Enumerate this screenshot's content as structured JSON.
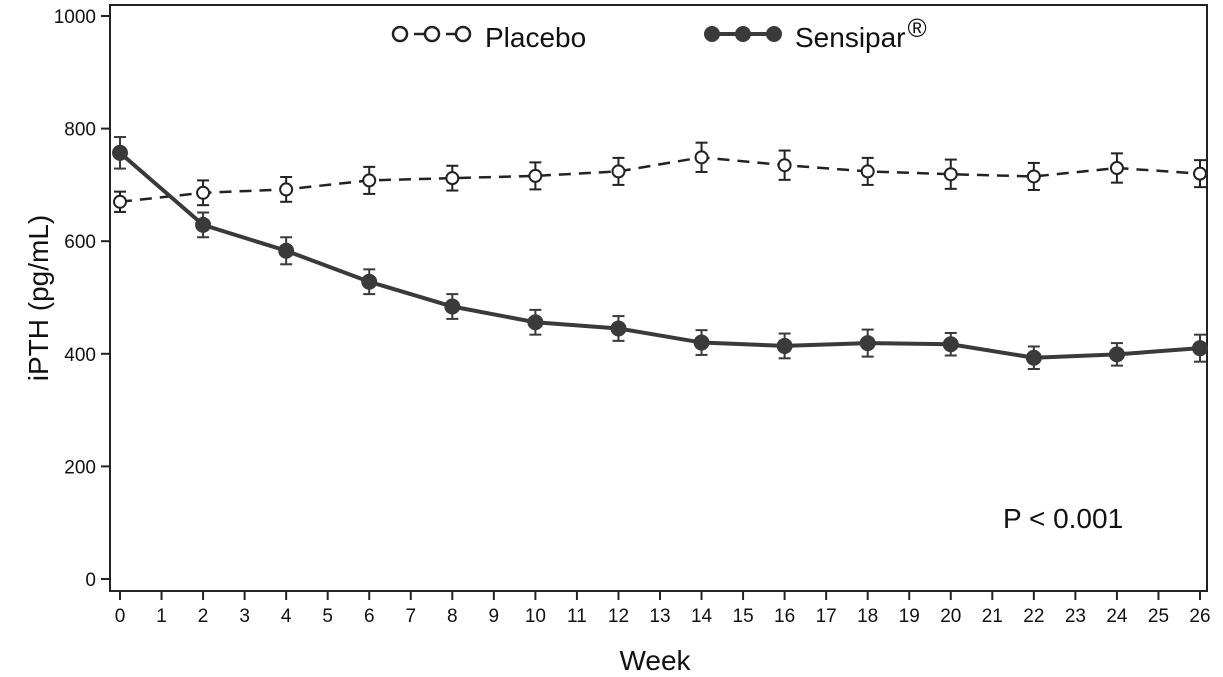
{
  "chart_data": {
    "type": "line",
    "xlabel": "Week",
    "ylabel": "iPTH (pg/mL)",
    "xlim": [
      0,
      26
    ],
    "ylim": [
      0,
      1000
    ],
    "x_ticks": [
      "0",
      "1",
      "2",
      "3",
      "4",
      "5",
      "6",
      "7",
      "8",
      "9",
      "10",
      "11",
      "12",
      "13",
      "14",
      "15",
      "16",
      "17",
      "18",
      "19",
      "20",
      "21",
      "22",
      "23",
      "24",
      "25",
      "26"
    ],
    "y_ticks": [
      "0",
      "200",
      "400",
      "600",
      "800",
      "1000"
    ],
    "x": [
      0,
      2,
      4,
      6,
      8,
      10,
      12,
      14,
      16,
      18,
      20,
      22,
      24,
      26
    ],
    "series": [
      {
        "name": "Placebo",
        "style": "dashed-open-circle",
        "color": "#222222",
        "values": [
          670,
          686,
          692,
          708,
          712,
          716,
          724,
          749,
          735,
          724,
          719,
          715,
          730,
          720
        ],
        "error": [
          18,
          22,
          22,
          24,
          22,
          24,
          24,
          26,
          26,
          24,
          26,
          24,
          26,
          24
        ]
      },
      {
        "name": "Sensipar",
        "name_suffix": "®",
        "style": "solid-filled-circle",
        "color": "#3a3a3a",
        "values": [
          757,
          629,
          583,
          528,
          484,
          456,
          445,
          420,
          414,
          419,
          417,
          393,
          399,
          410
        ],
        "error": [
          28,
          22,
          24,
          22,
          22,
          22,
          22,
          22,
          22,
          24,
          20,
          20,
          20,
          24
        ]
      }
    ],
    "annotation": "P < 0.001",
    "legend_position": "top",
    "grid": false
  }
}
